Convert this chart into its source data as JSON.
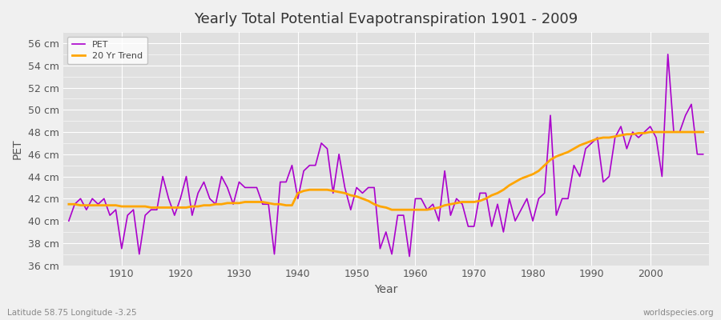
{
  "title": "Yearly Total Potential Evapotranspiration 1901 - 2009",
  "xlabel": "Year",
  "ylabel": "PET",
  "subtitle_left": "Latitude 58.75 Longitude -3.25",
  "subtitle_right": "worldspecies.org",
  "bg_color": "#f0f0f0",
  "plot_bg_color": "#e0e0e0",
  "pet_color": "#aa00cc",
  "trend_color": "#ffa500",
  "ylim": [
    36,
    57
  ],
  "ytick_step": 2,
  "years": [
    1901,
    1902,
    1903,
    1904,
    1905,
    1906,
    1907,
    1908,
    1909,
    1910,
    1911,
    1912,
    1913,
    1914,
    1915,
    1916,
    1917,
    1918,
    1919,
    1920,
    1921,
    1922,
    1923,
    1924,
    1925,
    1926,
    1927,
    1928,
    1929,
    1930,
    1931,
    1932,
    1933,
    1934,
    1935,
    1936,
    1937,
    1938,
    1939,
    1940,
    1941,
    1942,
    1943,
    1944,
    1945,
    1946,
    1947,
    1948,
    1949,
    1950,
    1951,
    1952,
    1953,
    1954,
    1955,
    1956,
    1957,
    1958,
    1959,
    1960,
    1961,
    1962,
    1963,
    1964,
    1965,
    1966,
    1967,
    1968,
    1969,
    1970,
    1971,
    1972,
    1973,
    1974,
    1975,
    1976,
    1977,
    1978,
    1979,
    1980,
    1981,
    1982,
    1983,
    1984,
    1985,
    1986,
    1987,
    1988,
    1989,
    1990,
    1991,
    1992,
    1993,
    1994,
    1995,
    1996,
    1997,
    1998,
    1999,
    2000,
    2001,
    2002,
    2003,
    2004,
    2005,
    2006,
    2007,
    2008,
    2009
  ],
  "pet": [
    40.0,
    41.5,
    42.0,
    41.0,
    42.0,
    41.5,
    42.0,
    40.5,
    41.0,
    37.5,
    40.5,
    41.0,
    37.0,
    40.5,
    41.0,
    41.0,
    44.0,
    42.0,
    40.5,
    42.0,
    44.0,
    40.5,
    42.5,
    43.5,
    42.0,
    41.5,
    44.0,
    43.0,
    41.5,
    43.5,
    43.0,
    43.0,
    43.0,
    41.5,
    41.5,
    37.0,
    43.5,
    43.5,
    45.0,
    42.0,
    44.5,
    45.0,
    45.0,
    47.0,
    46.5,
    42.5,
    46.0,
    43.0,
    41.0,
    43.0,
    42.5,
    43.0,
    43.0,
    37.5,
    39.0,
    37.0,
    40.5,
    40.5,
    36.8,
    42.0,
    42.0,
    41.0,
    41.5,
    40.0,
    44.5,
    40.5,
    42.0,
    41.5,
    39.5,
    39.5,
    42.5,
    42.5,
    39.5,
    41.5,
    39.0,
    42.0,
    40.0,
    41.0,
    42.0,
    40.0,
    42.0,
    42.5,
    49.5,
    40.5,
    42.0,
    42.0,
    45.0,
    44.0,
    46.5,
    47.0,
    47.5,
    43.5,
    44.0,
    47.5,
    48.5,
    46.5,
    48.0,
    47.5,
    48.0,
    48.5,
    47.5,
    44.0,
    55.0,
    48.0,
    48.0,
    49.5,
    50.5,
    46.0,
    46.0
  ],
  "trend_years": [
    1901,
    1902,
    1903,
    1904,
    1905,
    1906,
    1907,
    1908,
    1909,
    1910,
    1911,
    1912,
    1913,
    1914,
    1915,
    1916,
    1917,
    1918,
    1919,
    1920,
    1921,
    1922,
    1923,
    1924,
    1925,
    1926,
    1927,
    1928,
    1929,
    1930,
    1931,
    1932,
    1933,
    1934,
    1935,
    1936,
    1937,
    1938,
    1939,
    1940,
    1941,
    1942,
    1943,
    1944,
    1945,
    1946,
    1947,
    1948,
    1949,
    1950,
    1951,
    1952,
    1953,
    1954,
    1955,
    1956,
    1957,
    1958,
    1959,
    1960,
    1961,
    1962,
    1963,
    1964,
    1965,
    1966,
    1967,
    1968,
    1969,
    1970,
    1971,
    1972,
    1973,
    1974,
    1975,
    1976,
    1977,
    1978,
    1979,
    1980,
    1981,
    1982,
    1983,
    1984,
    1985,
    1986,
    1987,
    1988,
    1989,
    1990,
    1991,
    1992,
    1993,
    1994,
    1995,
    1996,
    1997,
    1998,
    1999,
    2000,
    2001,
    2002,
    2003,
    2004,
    2005,
    2006,
    2007,
    2008,
    2009
  ],
  "trend": [
    41.5,
    41.5,
    41.4,
    41.4,
    41.4,
    41.4,
    41.4,
    41.4,
    41.4,
    41.3,
    41.3,
    41.3,
    41.3,
    41.3,
    41.2,
    41.2,
    41.2,
    41.2,
    41.2,
    41.2,
    41.2,
    41.3,
    41.3,
    41.4,
    41.4,
    41.5,
    41.5,
    41.6,
    41.6,
    41.6,
    41.7,
    41.7,
    41.7,
    41.7,
    41.6,
    41.5,
    41.5,
    41.4,
    41.4,
    42.5,
    42.7,
    42.8,
    42.8,
    42.8,
    42.8,
    42.7,
    42.6,
    42.5,
    42.3,
    42.2,
    42.0,
    41.8,
    41.5,
    41.3,
    41.2,
    41.0,
    41.0,
    41.0,
    41.0,
    41.0,
    41.0,
    41.0,
    41.1,
    41.2,
    41.4,
    41.5,
    41.6,
    41.7,
    41.7,
    41.7,
    41.8,
    42.0,
    42.3,
    42.5,
    42.8,
    43.2,
    43.5,
    43.8,
    44.0,
    44.2,
    44.5,
    45.0,
    45.5,
    45.8,
    46.0,
    46.2,
    46.5,
    46.8,
    47.0,
    47.2,
    47.4,
    47.5,
    47.5,
    47.6,
    47.7,
    47.8,
    47.8,
    47.9,
    47.9,
    48.0,
    48.0,
    48.0,
    48.0,
    48.0,
    48.0,
    48.0,
    48.0,
    48.0,
    48.0
  ]
}
